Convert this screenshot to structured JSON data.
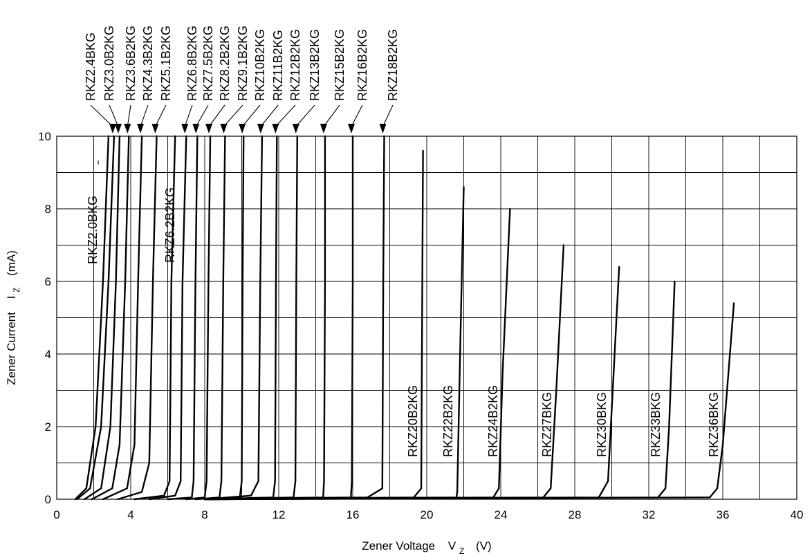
{
  "chart_data": {
    "type": "line",
    "xlabel": "Zener Voltage",
    "xlabel_symbol": "V",
    "xlabel_subscript": "Z",
    "xlabel_unit": "(V)",
    "ylabel": "Zener Current",
    "ylabel_symbol": "I",
    "ylabel_subscript": "Z",
    "ylabel_unit": "(mA)",
    "xlim": [
      0,
      40
    ],
    "ylim": [
      0,
      10
    ],
    "xticks": [
      0,
      4,
      8,
      12,
      16,
      20,
      24,
      28,
      32,
      36,
      40
    ],
    "yticks": [
      0,
      2,
      4,
      6,
      8,
      10
    ],
    "grid": true,
    "series": [
      {
        "name": "RKZ2.0BKG",
        "vz": 2.2,
        "x": [
          1.0,
          1.6,
          2.1,
          2.5,
          2.8
        ],
        "y": [
          0,
          0.3,
          2.0,
          6.0,
          10
        ]
      },
      {
        "name": "RKZ2.4BKG",
        "vz": 2.5,
        "x": [
          1.1,
          1.8,
          2.4,
          2.8,
          3.1
        ],
        "y": [
          0,
          0.3,
          2.0,
          6.0,
          10
        ]
      },
      {
        "name": "RKZ3.0B2KG",
        "vz": 3.0,
        "x": [
          1.5,
          2.4,
          2.9,
          3.2,
          3.4
        ],
        "y": [
          0,
          0.3,
          2.0,
          6.0,
          10
        ]
      },
      {
        "name": "RKZ3.6B2KG",
        "vz": 3.6,
        "x": [
          1.9,
          3.0,
          3.4,
          3.7,
          3.9
        ],
        "y": [
          0,
          0.3,
          1.5,
          6.0,
          10
        ]
      },
      {
        "name": "RKZ4.3B2KG",
        "vz": 4.3,
        "x": [
          2.5,
          3.8,
          4.2,
          4.4,
          4.6
        ],
        "y": [
          0,
          0.3,
          1.5,
          6.0,
          10
        ]
      },
      {
        "name": "RKZ5.1B2KG",
        "vz": 5.1,
        "x": [
          3.3,
          4.6,
          5.0,
          5.2,
          5.4
        ],
        "y": [
          0,
          0.2,
          1.0,
          6.0,
          10
        ]
      },
      {
        "name": "RKZ6.2B2KG",
        "vz": 6.2,
        "x": [
          4.2,
          5.8,
          6.1,
          6.2,
          6.4
        ],
        "y": [
          0,
          0.1,
          0.5,
          6.0,
          10
        ]
      },
      {
        "name": "RKZ6.8B2KG",
        "vz": 6.8,
        "x": [
          5.0,
          6.4,
          6.7,
          6.8,
          7.0
        ],
        "y": [
          0,
          0.1,
          0.5,
          6.0,
          10
        ]
      },
      {
        "name": "RKZ7.5B2KG",
        "vz": 7.5,
        "x": [
          6.0,
          7.3,
          7.4,
          7.5,
          7.6
        ],
        "y": [
          0,
          0.05,
          0.5,
          6.0,
          10
        ]
      },
      {
        "name": "RKZ8.2B2KG",
        "vz": 8.2,
        "x": [
          7.0,
          8.0,
          8.1,
          8.2,
          8.3
        ],
        "y": [
          0,
          0.05,
          0.5,
          6.0,
          10
        ]
      },
      {
        "name": "RKZ9.1B2KG",
        "vz": 9.0,
        "x": [
          7.5,
          8.8,
          8.9,
          9.0,
          9.1
        ],
        "y": [
          0,
          0.05,
          0.5,
          6.0,
          10
        ]
      },
      {
        "name": "RKZ10B2KG",
        "vz": 10.1,
        "x": [
          8.0,
          9.9,
          10.0,
          10.05,
          10.1
        ],
        "y": [
          0,
          0.05,
          0.5,
          6.0,
          10
        ]
      },
      {
        "name": "RKZ11B2KG",
        "vz": 11.1,
        "x": [
          8.0,
          10.5,
          10.9,
          11.0,
          11.1
        ],
        "y": [
          0,
          0.1,
          0.5,
          6.0,
          10
        ]
      },
      {
        "name": "RKZ12B2KG",
        "vz": 11.9,
        "x": [
          8.0,
          11.7,
          11.8,
          11.85,
          11.9
        ],
        "y": [
          0,
          0.05,
          0.5,
          6.0,
          10
        ]
      },
      {
        "name": "RKZ13B2KG",
        "vz": 13.0,
        "x": [
          8.0,
          12.8,
          12.9,
          12.95,
          13.0
        ],
        "y": [
          0,
          0.05,
          0.5,
          6.0,
          10
        ]
      },
      {
        "name": "RKZ15B2KG",
        "vz": 14.5,
        "x": [
          8.0,
          14.4,
          14.45,
          14.5,
          14.5
        ],
        "y": [
          0,
          0.05,
          0.5,
          6.0,
          10
        ]
      },
      {
        "name": "RKZ16B2KG",
        "vz": 16.0,
        "x": [
          8.0,
          15.9,
          15.95,
          16.0,
          16.0
        ],
        "y": [
          0,
          0.05,
          0.5,
          6.0,
          10
        ]
      },
      {
        "name": "RKZ18B2KG",
        "vz": 17.7,
        "x": [
          8.0,
          16.8,
          17.6,
          17.65,
          17.7
        ],
        "y": [
          0,
          0.05,
          0.3,
          6.0,
          10
        ]
      },
      {
        "name": "RKZ20B2KG",
        "vz": 19.8,
        "x": [
          8.0,
          19.3,
          19.7,
          19.75,
          19.8
        ],
        "y": [
          0,
          0.05,
          0.3,
          5.0,
          9.6
        ]
      },
      {
        "name": "RKZ22B2KG",
        "vz": 22.0,
        "x": [
          8.0,
          21.6,
          21.65,
          21.8,
          22.0
        ],
        "y": [
          0,
          0.05,
          0.2,
          4.0,
          8.6
        ]
      },
      {
        "name": "RKZ24B2KG",
        "vz": 24.5,
        "x": [
          8.0,
          23.6,
          23.9,
          24.1,
          24.5
        ],
        "y": [
          0,
          0.05,
          0.3,
          3.5,
          8.0
        ]
      },
      {
        "name": "RKZ27BKG",
        "vz": 27.4,
        "x": [
          8.0,
          26.3,
          26.7,
          27.0,
          27.4
        ],
        "y": [
          0,
          0.05,
          0.3,
          3.0,
          7.0
        ]
      },
      {
        "name": "RKZ30BKG",
        "vz": 30.4,
        "x": [
          8.0,
          29.3,
          29.8,
          30.0,
          30.4
        ],
        "y": [
          0,
          0.05,
          0.5,
          2.5,
          6.4
        ]
      },
      {
        "name": "RKZ33BKG",
        "vz": 33.4,
        "x": [
          8.0,
          32.5,
          32.9,
          33.1,
          33.4
        ],
        "y": [
          0,
          0.05,
          0.3,
          2.0,
          6.0
        ]
      },
      {
        "name": "RKZ36BKG",
        "vz": 36.6,
        "x": [
          8.0,
          35.3,
          35.7,
          36.0,
          36.6
        ],
        "y": [
          0,
          0.05,
          0.3,
          1.5,
          5.4
        ]
      }
    ]
  }
}
